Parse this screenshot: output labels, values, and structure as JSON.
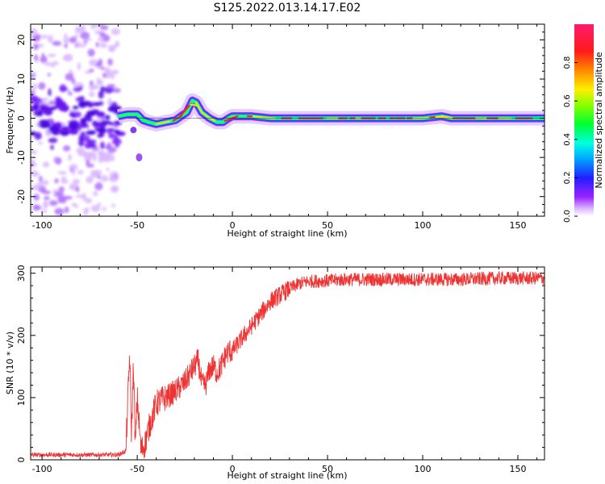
{
  "title": "S125.2022.013.14.17.E02",
  "chart_data": [
    {
      "type": "heatmap",
      "title": "",
      "xlabel": "Height of straight line (km)",
      "ylabel": "Frequency (Hz)",
      "xlim": [
        -106,
        164
      ],
      "ylim": [
        -25,
        24
      ],
      "xticks": [
        -100,
        -50,
        0,
        50,
        100,
        150
      ],
      "xtick_labels": [
        "-100",
        "-50",
        "0",
        "50",
        "100",
        "150"
      ],
      "yticks": [
        -20,
        -10,
        0,
        10,
        20
      ],
      "ytick_labels": [
        "-20",
        "-10",
        "0",
        "10",
        "20"
      ],
      "colorbar": {
        "label": "Normalized spectral amplitude",
        "range": [
          0,
          1
        ],
        "ticks": [
          0.0,
          0.2,
          0.4,
          0.6,
          0.8
        ],
        "tick_labels": [
          "0.0",
          "0.2",
          "0.4",
          "0.6",
          "0.8"
        ],
        "colormap": "gist_rainbow reversed (white-purple-blue-cyan-green-yellow-orange-red-magenta)"
      },
      "ridge_frequency": {
        "x": [
          -60,
          -55,
          -50,
          -47,
          -44,
          -40,
          -35,
          -30,
          -27,
          -24,
          -21,
          -19,
          -16,
          -12,
          -8,
          -5,
          -2,
          0,
          5,
          10,
          20,
          50,
          100,
          110,
          115,
          164
        ],
        "y": [
          0.5,
          1.0,
          1.0,
          -0.5,
          -1.0,
          -1.5,
          -1.0,
          -0.5,
          0.5,
          1.5,
          4.5,
          4.0,
          1.5,
          0.0,
          -1.0,
          -1.0,
          0.0,
          0.5,
          0.5,
          0.5,
          0.0,
          0.0,
          0.0,
          0.5,
          0.0,
          0.0
        ]
      }
    },
    {
      "type": "line",
      "title": "",
      "xlabel": "Height of straight line (km)",
      "ylabel": "SNR (10 * v/v)",
      "xlim": [
        -106,
        164
      ],
      "ylim": [
        0,
        310
      ],
      "xticks": [
        -100,
        -50,
        0,
        50,
        100,
        150
      ],
      "xtick_labels": [
        "-100",
        "-50",
        "0",
        "50",
        "100",
        "150"
      ],
      "yticks": [
        0,
        100,
        200,
        300
      ],
      "ytick_labels": [
        "0",
        "100",
        "200",
        "300"
      ],
      "color": "#ee3333",
      "series": [
        {
          "x": [
            -106,
            -80,
            -60,
            -56,
            -55,
            -54,
            -53,
            -52,
            -51,
            -50,
            -48,
            -46,
            -44,
            -42,
            -40,
            -38,
            -35,
            -30,
            -25,
            -20,
            -18,
            -16,
            -14,
            -12,
            -10,
            -8,
            -6,
            -4,
            -2,
            0,
            5,
            10,
            15,
            20,
            25,
            30,
            35,
            40,
            50,
            60,
            80,
            100,
            120,
            140,
            164
          ],
          "y": [
            8,
            8,
            8,
            14,
            90,
            170,
            40,
            155,
            20,
            100,
            15,
            25,
            50,
            70,
            90,
            95,
            100,
            110,
            125,
            150,
            160,
            120,
            120,
            145,
            150,
            140,
            150,
            165,
            175,
            175,
            195,
            215,
            235,
            255,
            265,
            275,
            283,
            287,
            288,
            290,
            290,
            290,
            290,
            292,
            292
          ]
        }
      ]
    }
  ]
}
